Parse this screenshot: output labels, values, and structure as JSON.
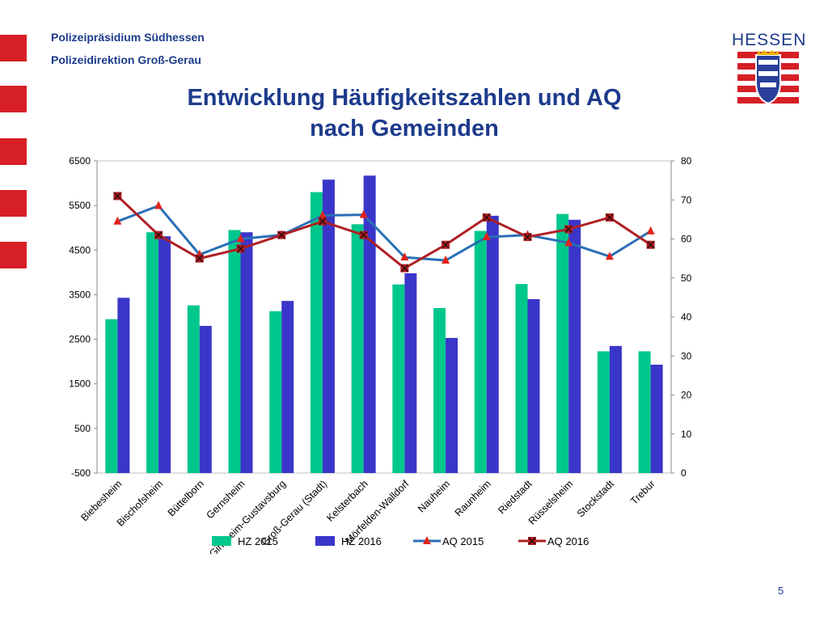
{
  "header": {
    "line1": "Polizeipräsidium Südhessen",
    "line2": "Polizeidirektion Groß-Gerau"
  },
  "title_line1": "Entwicklung Häufigkeitszahlen und AQ",
  "title_line2": "nach Gemeinden",
  "logo": {
    "text": "HESSEN",
    "icon": "hessen-coat-of-arms-icon"
  },
  "page_number": "5",
  "colors": {
    "brand_red": "#d61f26",
    "title_blue": "#1d3b8c"
  },
  "chart_data": {
    "type": "bar",
    "categories": [
      "Biebesheim",
      "Bischofsheim",
      "Büttelborn",
      "Gernsheim",
      "Ginsheim-Gustavsburg",
      "Groß-Gerau (Stadt)",
      "Kelsterbach",
      "Mörfelden-Walldorf",
      "Nauheim",
      "Raunheim",
      "Riedstadt",
      "Rüsselsheim",
      "Stockstadt",
      "Trebur"
    ],
    "y_left": {
      "ylim": [
        -500,
        6500
      ],
      "ticks": [
        "6500",
        "5500",
        "4500",
        "3500",
        "2500",
        "1500",
        "500",
        "-500"
      ]
    },
    "y_right": {
      "ylim": [
        0,
        80
      ],
      "ticks": [
        "80",
        "70",
        "60",
        "50",
        "40",
        "30",
        "20",
        "10",
        "0"
      ]
    },
    "grid": false,
    "legend_position": "bottom",
    "series": [
      {
        "name": "HZ 2015",
        "type": "bar",
        "axis": "left",
        "color": "#00c78c",
        "values": [
          2950,
          4900,
          3260,
          4950,
          3130,
          5800,
          5080,
          3730,
          3200,
          4930,
          3740,
          5310,
          2230,
          2230
        ]
      },
      {
        "name": "HZ 2016",
        "type": "bar",
        "axis": "left",
        "color": "#3a36c9",
        "values": [
          3430,
          4810,
          2800,
          4900,
          3360,
          6080,
          6170,
          3980,
          2530,
          5270,
          3400,
          5180,
          2350,
          1930
        ]
      },
      {
        "name": "AQ 2015",
        "type": "line",
        "axis": "right",
        "color": "#2a6fb5",
        "marker": "triangle",
        "values": [
          64.5,
          68.5,
          56.0,
          60.0,
          61.0,
          66.0,
          66.2,
          55.3,
          54.5,
          60.5,
          61.0,
          59.0,
          55.5,
          62.0
        ]
      },
      {
        "name": "AQ 2016",
        "type": "line",
        "axis": "right",
        "color": "#b01f24",
        "marker": "x-square",
        "values": [
          71.0,
          61.0,
          55.0,
          57.5,
          61.0,
          64.5,
          61.0,
          52.5,
          58.5,
          65.5,
          60.5,
          62.5,
          65.5,
          58.5
        ]
      }
    ]
  }
}
